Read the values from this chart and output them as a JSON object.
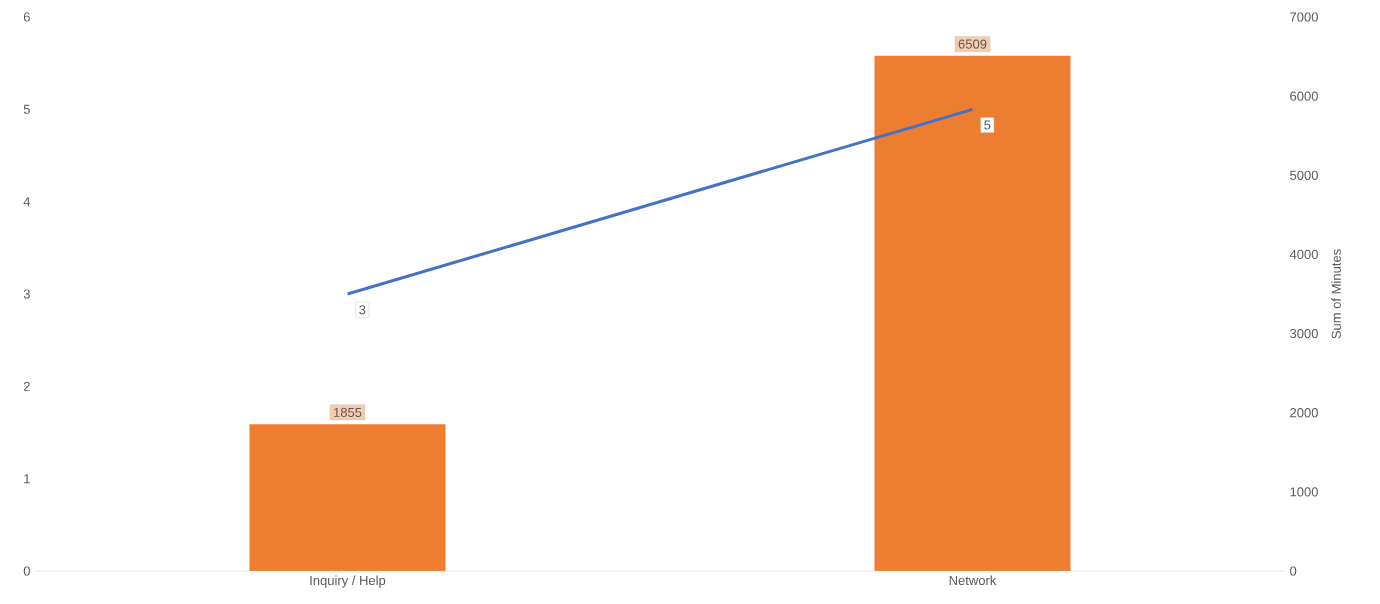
{
  "chart_data": {
    "type": "bar",
    "categories": [
      "Inquiry / Help",
      "Network"
    ],
    "series": [
      {
        "axis": "y2",
        "color": "#ed7d31",
        "values": [
          1855,
          6509
        ]
      },
      {
        "type": "line",
        "color": "#4472c4",
        "values": [
          3,
          5
        ]
      }
    ],
    "ylim": [
      0,
      6
    ],
    "yticks": [
      0,
      1,
      2,
      3,
      4,
      5,
      6
    ],
    "y2lim": [
      0,
      7000
    ],
    "y2ticks": [
      0,
      1000,
      2000,
      3000,
      4000,
      5000,
      6000,
      7000
    ],
    "y2label": "Sum of Minutes",
    "data_labels": true
  }
}
